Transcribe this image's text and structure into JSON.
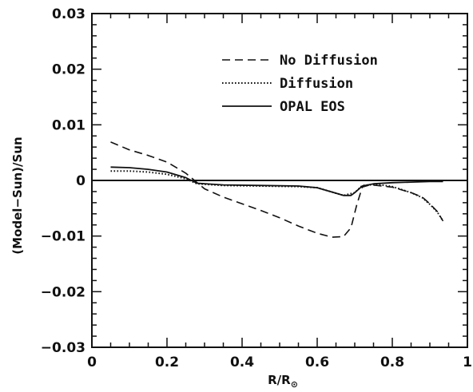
{
  "chart_data": {
    "type": "line",
    "xlabel": "R/R",
    "xlabel_subscript": "⊙",
    "ylabel": "(Model−Sun)/Sun",
    "xlim": [
      0,
      1
    ],
    "ylim": [
      -0.03,
      0.03
    ],
    "xticks": [
      "0",
      "0.2",
      "0.4",
      "0.6",
      "0.8",
      "1"
    ],
    "yticks": [
      "0.03",
      "0.02",
      "0.01",
      "0",
      "−0.01",
      "−0.02",
      "−0.03"
    ],
    "grid": false,
    "legend_position": "top-right",
    "series": [
      {
        "name": "No Diffusion",
        "style": "dashed",
        "x": [
          0.05,
          0.1,
          0.15,
          0.2,
          0.25,
          0.3,
          0.35,
          0.4,
          0.45,
          0.5,
          0.55,
          0.6,
          0.64,
          0.67,
          0.69,
          0.705,
          0.72,
          0.74,
          0.76,
          0.8,
          0.85,
          0.88,
          0.9,
          0.92,
          0.935
        ],
        "y": [
          0.0069,
          0.0055,
          0.0045,
          0.0033,
          0.0013,
          -0.0015,
          -0.003,
          -0.0042,
          -0.0054,
          -0.0067,
          -0.0082,
          -0.0095,
          -0.0102,
          -0.0101,
          -0.0085,
          -0.0045,
          -0.0012,
          -0.0008,
          -0.0009,
          -0.0012,
          -0.0022,
          -0.003,
          -0.0042,
          -0.0056,
          -0.0073
        ]
      },
      {
        "name": "Diffusion",
        "style": "dotted",
        "x": [
          0.05,
          0.1,
          0.15,
          0.2,
          0.25,
          0.28,
          0.35,
          0.45,
          0.55,
          0.6,
          0.65,
          0.67,
          0.7,
          0.72,
          0.76,
          0.8,
          0.85,
          0.88,
          0.9,
          0.92,
          0.935
        ],
        "y": [
          0.0017,
          0.0017,
          0.0015,
          0.0011,
          0.0003,
          -0.0006,
          -0.0009,
          -0.001,
          -0.0011,
          -0.0013,
          -0.0023,
          -0.0027,
          -0.0022,
          -0.0009,
          -0.0007,
          -0.0011,
          -0.0022,
          -0.0031,
          -0.0043,
          -0.0057,
          -0.0073
        ]
      },
      {
        "name": "OPAL EOS",
        "style": "solid",
        "x": [
          0.05,
          0.1,
          0.15,
          0.2,
          0.25,
          0.28,
          0.35,
          0.45,
          0.55,
          0.6,
          0.65,
          0.67,
          0.69,
          0.7,
          0.72,
          0.75,
          0.8,
          0.85,
          0.9,
          0.935
        ],
        "y": [
          0.0024,
          0.0023,
          0.002,
          0.0015,
          0.0005,
          -0.0005,
          -0.0008,
          -0.0009,
          -0.001,
          -0.0013,
          -0.0023,
          -0.0027,
          -0.0027,
          -0.0022,
          -0.001,
          -0.0006,
          -0.0004,
          -0.0003,
          -0.0002,
          -0.0002
        ]
      }
    ]
  }
}
